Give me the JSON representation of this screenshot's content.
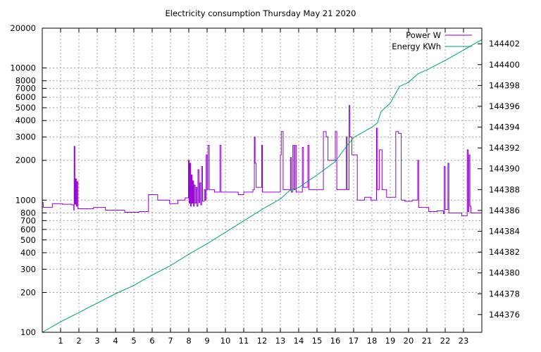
{
  "chart_data": {
    "type": "line",
    "title": "Electricity consumption Thursday May 21 2020",
    "xlabel": "",
    "ylabel": "",
    "y2label": "",
    "xlim": [
      0,
      24
    ],
    "x_ticks": [
      1,
      2,
      3,
      4,
      5,
      6,
      7,
      8,
      9,
      10,
      11,
      12,
      13,
      14,
      15,
      16,
      17,
      18,
      19,
      20,
      21,
      22,
      23
    ],
    "y_scale": "log",
    "ylim": [
      100,
      20000
    ],
    "y_ticks": [
      100,
      200,
      300,
      400,
      500,
      600,
      700,
      800,
      1000,
      2000,
      3000,
      4000,
      5000,
      6000,
      7000,
      8000,
      10000,
      20000
    ],
    "y2lim": [
      144374.3,
      144403.5
    ],
    "y2_ticks": [
      144376,
      144378,
      144380,
      144382,
      144384,
      144386,
      144388,
      144390,
      144392,
      144394,
      144396,
      144398,
      144400,
      144402
    ],
    "grid": true,
    "legend_position": "top-right",
    "series": [
      {
        "name": "Power W",
        "axis": "left",
        "color": "#9400d3",
        "style": "steps",
        "points": [
          [
            0,
            960
          ],
          [
            0.05,
            880
          ],
          [
            0.55,
            940
          ],
          [
            1.1,
            930
          ],
          [
            1.6,
            920
          ],
          [
            1.72,
            840
          ],
          [
            1.74,
            2550
          ],
          [
            1.78,
            930
          ],
          [
            1.82,
            1450
          ],
          [
            1.86,
            900
          ],
          [
            1.9,
            1380
          ],
          [
            1.95,
            860
          ],
          [
            2.8,
            880
          ],
          [
            3.45,
            840
          ],
          [
            4.5,
            810
          ],
          [
            5.3,
            820
          ],
          [
            5.8,
            1100
          ],
          [
            6.3,
            1000
          ],
          [
            6.95,
            940
          ],
          [
            7.4,
            1000
          ],
          [
            7.8,
            1040
          ],
          [
            7.98,
            2000
          ],
          [
            8.02,
            950
          ],
          [
            8.06,
            1900
          ],
          [
            8.1,
            900
          ],
          [
            8.14,
            1550
          ],
          [
            8.18,
            950
          ],
          [
            8.22,
            1400
          ],
          [
            8.26,
            900
          ],
          [
            8.3,
            1300
          ],
          [
            8.35,
            950
          ],
          [
            8.4,
            1250
          ],
          [
            8.45,
            900
          ],
          [
            8.5,
            1700
          ],
          [
            8.55,
            960
          ],
          [
            8.6,
            1350
          ],
          [
            8.65,
            920
          ],
          [
            8.7,
            1800
          ],
          [
            8.75,
            980
          ],
          [
            8.85,
            1200
          ],
          [
            8.9,
            1000
          ],
          [
            8.95,
            2200
          ],
          [
            9.0,
            1200
          ],
          [
            9.05,
            2600
          ],
          [
            9.12,
            1200
          ],
          [
            9.4,
            1150
          ],
          [
            9.7,
            2600
          ],
          [
            9.76,
            1150
          ],
          [
            10.7,
            1100
          ],
          [
            11.0,
            1150
          ],
          [
            11.5,
            1200
          ],
          [
            11.58,
            3000
          ],
          [
            11.62,
            1900
          ],
          [
            11.68,
            1250
          ],
          [
            11.98,
            2600
          ],
          [
            12.02,
            1150
          ],
          [
            12.8,
            1150
          ],
          [
            13.0,
            2200
          ],
          [
            13.05,
            3300
          ],
          [
            13.15,
            1200
          ],
          [
            13.4,
            1200
          ],
          [
            13.55,
            2100
          ],
          [
            13.6,
            1150
          ],
          [
            13.68,
            2600
          ],
          [
            13.74,
            1200
          ],
          [
            13.8,
            2600
          ],
          [
            13.86,
            1150
          ],
          [
            14.2,
            2500
          ],
          [
            14.26,
            1250
          ],
          [
            14.5,
            2600
          ],
          [
            14.56,
            1200
          ],
          [
            15.0,
            1200
          ],
          [
            15.35,
            3300
          ],
          [
            15.5,
            3000
          ],
          [
            15.6,
            2000
          ],
          [
            15.95,
            2000
          ],
          [
            16.0,
            3300
          ],
          [
            16.08,
            1200
          ],
          [
            16.6,
            3000
          ],
          [
            16.65,
            1200
          ],
          [
            16.75,
            5200
          ],
          [
            16.8,
            3000
          ],
          [
            16.9,
            2200
          ],
          [
            17.2,
            1000
          ],
          [
            17.6,
            1050
          ],
          [
            17.95,
            1000
          ],
          [
            18.25,
            3500
          ],
          [
            18.3,
            1200
          ],
          [
            18.4,
            2400
          ],
          [
            18.55,
            1200
          ],
          [
            18.8,
            1050
          ],
          [
            19.3,
            3300
          ],
          [
            19.45,
            3200
          ],
          [
            19.6,
            1000
          ],
          [
            19.8,
            980
          ],
          [
            20.2,
            1000
          ],
          [
            20.5,
            2000
          ],
          [
            20.55,
            880
          ],
          [
            20.7,
            880
          ],
          [
            21.1,
            820
          ],
          [
            21.55,
            830
          ],
          [
            21.9,
            790
          ],
          [
            21.95,
            1800
          ],
          [
            22.0,
            850
          ],
          [
            22.15,
            1900
          ],
          [
            22.2,
            800
          ],
          [
            22.5,
            800
          ],
          [
            22.9,
            760
          ],
          [
            23.1,
            760
          ],
          [
            23.2,
            2400
          ],
          [
            23.25,
            820
          ],
          [
            23.3,
            2200
          ],
          [
            23.35,
            900
          ],
          [
            23.4,
            800
          ],
          [
            23.8,
            800
          ],
          [
            24,
            800
          ]
        ]
      },
      {
        "name": "Energy KWh",
        "axis": "right",
        "color": "#009e73",
        "style": "line",
        "points": [
          [
            0,
            144374.3
          ],
          [
            1,
            144375.3
          ],
          [
            2,
            144376.2
          ],
          [
            3,
            144377.1
          ],
          [
            4,
            144378.0
          ],
          [
            5,
            144378.8
          ],
          [
            6,
            144379.8
          ],
          [
            7,
            144380.7
          ],
          [
            8,
            144381.8
          ],
          [
            9,
            144382.8
          ],
          [
            10,
            144383.9
          ],
          [
            11,
            144385.0
          ],
          [
            12,
            144386.1
          ],
          [
            13,
            144387.1
          ],
          [
            13.5,
            144387.9
          ],
          [
            14,
            144388.2
          ],
          [
            15,
            144389.4
          ],
          [
            16,
            144390.7
          ],
          [
            16.5,
            144391.9
          ],
          [
            17,
            144393.0
          ],
          [
            17.5,
            144393.5
          ],
          [
            18,
            144394.0
          ],
          [
            18.3,
            144394.4
          ],
          [
            18.5,
            144395.5
          ],
          [
            19,
            144396.3
          ],
          [
            19.5,
            144397.9
          ],
          [
            20,
            144398.3
          ],
          [
            20.5,
            144399.1
          ],
          [
            21,
            144399.5
          ],
          [
            22,
            144400.4
          ],
          [
            23,
            144401.4
          ],
          [
            24,
            144402.4
          ]
        ]
      }
    ]
  }
}
